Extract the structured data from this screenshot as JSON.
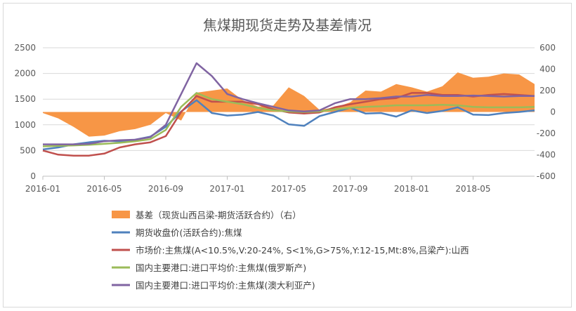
{
  "chart_data": {
    "type": "line",
    "title": "焦煤期现货走势及基差情况",
    "x_ticks": [
      "2016-01",
      "2016-05",
      "2016-09",
      "2017-01",
      "2017-05",
      "2017-09",
      "2018-01",
      "2018-05"
    ],
    "y_left": {
      "ticks": [
        "2500",
        "2000",
        "1500",
        "1000",
        "500",
        "0"
      ],
      "ylim": [
        0,
        2500
      ]
    },
    "y_right": {
      "ticks": [
        "600",
        "400",
        "200",
        "0",
        "-200",
        "-400",
        "-600"
      ],
      "ylim": [
        -600,
        600
      ]
    },
    "grid": true,
    "legend_position": "bottom",
    "series": [
      {
        "name": "基差（现货山西吕梁-期货活跃合约）（右）",
        "kind": "area",
        "axis": "right",
        "color": "#f79646",
        "x": [
          "2016-01",
          "2016-02",
          "2016-03",
          "2016-04",
          "2016-05",
          "2016-06",
          "2016-07",
          "2016-08",
          "2016-09",
          "2016-10",
          "2016-11",
          "2016-12",
          "2017-01",
          "2017-02",
          "2017-03",
          "2017-04",
          "2017-05",
          "2017-06",
          "2017-07",
          "2017-08",
          "2017-09",
          "2017-10",
          "2017-11",
          "2017-12",
          "2018-01",
          "2018-02",
          "2018-03",
          "2018-04",
          "2018-05",
          "2018-06",
          "2018-07",
          "2018-08",
          "2018-09"
        ],
        "values": [
          -10,
          -60,
          -140,
          -230,
          -220,
          -180,
          -160,
          -120,
          -10,
          -80,
          180,
          200,
          220,
          110,
          50,
          60,
          230,
          150,
          20,
          40,
          90,
          200,
          190,
          260,
          230,
          190,
          240,
          370,
          320,
          330,
          360,
          350,
          260
        ]
      },
      {
        "name": "期货收盘价(活跃合约):焦煤",
        "kind": "line",
        "axis": "left",
        "color": "#4f81bd",
        "x": [
          "2016-01",
          "2016-02",
          "2016-03",
          "2016-04",
          "2016-05",
          "2016-06",
          "2016-07",
          "2016-08",
          "2016-09",
          "2016-10",
          "2016-11",
          "2016-12",
          "2017-01",
          "2017-02",
          "2017-03",
          "2017-04",
          "2017-05",
          "2017-06",
          "2017-07",
          "2017-08",
          "2017-09",
          "2017-10",
          "2017-11",
          "2017-12",
          "2018-01",
          "2018-02",
          "2018-03",
          "2018-04",
          "2018-05",
          "2018-06",
          "2018-07",
          "2018-08",
          "2018-09"
        ],
        "values": [
          520,
          560,
          620,
          660,
          690,
          680,
          710,
          770,
          960,
          1260,
          1480,
          1230,
          1180,
          1200,
          1250,
          1180,
          1010,
          980,
          1170,
          1250,
          1330,
          1220,
          1230,
          1160,
          1280,
          1230,
          1270,
          1340,
          1200,
          1190,
          1230,
          1250,
          1280
        ]
      },
      {
        "name": "市场价:主焦煤(A<10.5%,V:20-24%, S<1%,G>75%,Y:12-15,Mt:8%,吕梁产):山西",
        "kind": "line",
        "axis": "left",
        "color": "#c0504d",
        "x": [
          "2016-01",
          "2016-02",
          "2016-03",
          "2016-04",
          "2016-05",
          "2016-06",
          "2016-07",
          "2016-08",
          "2016-09",
          "2016-10",
          "2016-11",
          "2016-12",
          "2017-01",
          "2017-02",
          "2017-03",
          "2017-04",
          "2017-05",
          "2017-06",
          "2017-07",
          "2017-08",
          "2017-09",
          "2017-10",
          "2017-11",
          "2017-12",
          "2018-01",
          "2018-02",
          "2018-03",
          "2018-04",
          "2018-05",
          "2018-06",
          "2018-07",
          "2018-08",
          "2018-09"
        ],
        "values": [
          500,
          420,
          400,
          400,
          440,
          560,
          620,
          660,
          780,
          1250,
          1560,
          1450,
          1450,
          1450,
          1400,
          1300,
          1240,
          1220,
          1240,
          1340,
          1400,
          1450,
          1500,
          1520,
          1620,
          1620,
          1580,
          1580,
          1550,
          1580,
          1600,
          1580,
          1560
        ]
      },
      {
        "name": "国内主要港口:进口平均价:主焦煤(俄罗斯产)",
        "kind": "line",
        "axis": "left",
        "color": "#9bbb59",
        "x": [
          "2016-01",
          "2016-02",
          "2016-03",
          "2016-04",
          "2016-05",
          "2016-06",
          "2016-07",
          "2016-08",
          "2016-09",
          "2016-10",
          "2016-11",
          "2016-12",
          "2017-01",
          "2017-02",
          "2017-03",
          "2017-04",
          "2017-05",
          "2017-06",
          "2017-07",
          "2017-08",
          "2017-09",
          "2017-10",
          "2017-11",
          "2017-12",
          "2018-01",
          "2018-02",
          "2018-03",
          "2018-04",
          "2018-05",
          "2018-06",
          "2018-07",
          "2018-08",
          "2018-09"
        ],
        "values": [
          580,
          590,
          600,
          610,
          630,
          650,
          680,
          720,
          900,
          1350,
          1620,
          1500,
          1450,
          1400,
          1330,
          1280,
          1260,
          1250,
          1260,
          1300,
          1330,
          1350,
          1360,
          1380,
          1380,
          1380,
          1390,
          1380,
          1350,
          1340,
          1340,
          1340,
          1350
        ]
      },
      {
        "name": "国内主要港口:进口平均价:主焦煤(澳大利亚产)",
        "kind": "line",
        "axis": "left",
        "color": "#8064a2",
        "x": [
          "2016-01",
          "2016-02",
          "2016-03",
          "2016-04",
          "2016-05",
          "2016-06",
          "2016-07",
          "2016-08",
          "2016-09",
          "2016-10",
          "2016-11",
          "2016-12",
          "2017-01",
          "2017-02",
          "2017-03",
          "2017-04",
          "2017-05",
          "2017-06",
          "2017-07",
          "2017-08",
          "2017-09",
          "2017-10",
          "2017-11",
          "2017-12",
          "2018-01",
          "2018-02",
          "2018-03",
          "2018-04",
          "2018-05",
          "2018-06",
          "2018-07",
          "2018-08",
          "2018-09"
        ],
        "values": [
          620,
          620,
          620,
          630,
          680,
          700,
          710,
          760,
          1000,
          1600,
          2200,
          1950,
          1600,
          1500,
          1420,
          1350,
          1280,
          1260,
          1280,
          1420,
          1500,
          1500,
          1520,
          1550,
          1550,
          1580,
          1560,
          1560,
          1570,
          1560,
          1550,
          1560,
          1560
        ]
      }
    ]
  }
}
